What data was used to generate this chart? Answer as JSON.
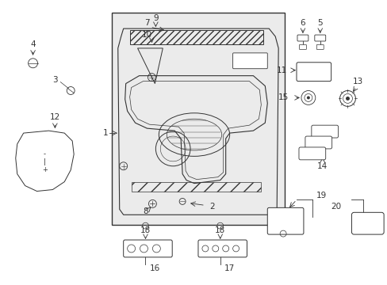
{
  "bg_color": "#ffffff",
  "line_color": "#333333",
  "fig_w": 4.89,
  "fig_h": 3.6,
  "dpi": 100
}
